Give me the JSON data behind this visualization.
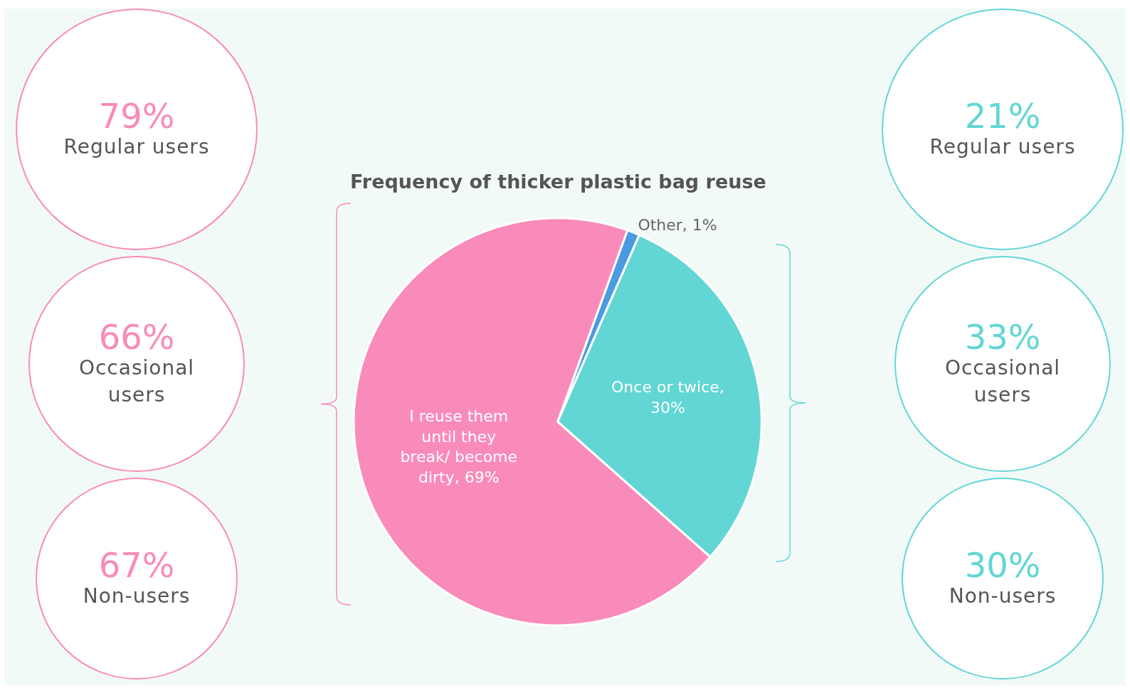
{
  "chart_data": {
    "type": "pie",
    "title": "Frequency of thicker plastic bag reuse",
    "categories": [
      "Other, 1%",
      "Once or twice, 30%",
      "I reuse them until they break/ become dirty, 69%"
    ],
    "values": [
      1,
      30,
      69
    ],
    "colors": [
      "#4a9be0",
      "#62d6d4",
      "#f98bba"
    ],
    "annotations": [
      "79%",
      "Regular users",
      "66%",
      "Occasional users",
      "67%",
      "Non-users",
      "21%",
      "Regular users",
      "33%",
      "Occasional users",
      "30%",
      "Non-users"
    ]
  }
}
